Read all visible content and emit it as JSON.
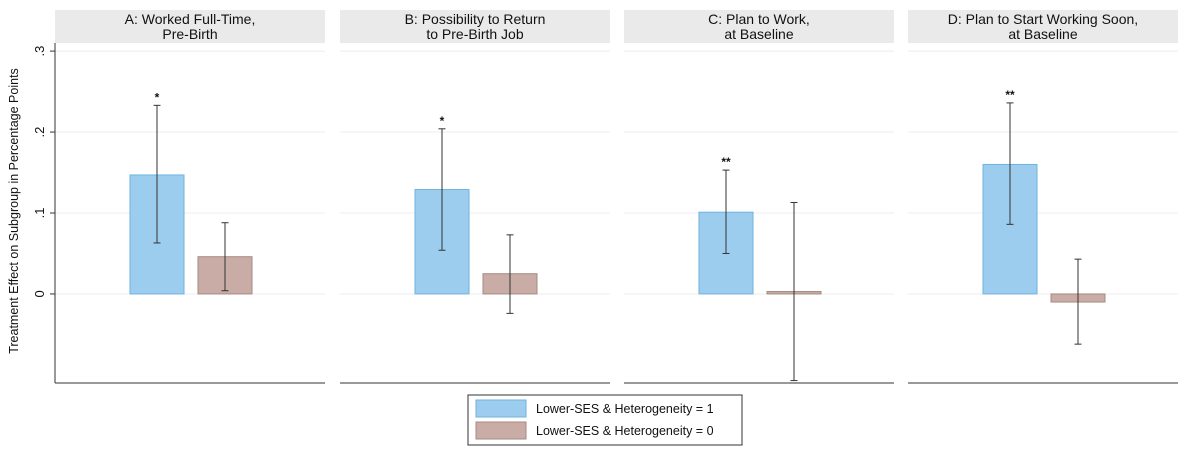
{
  "chart_data": {
    "type": "bar",
    "ylabel": "Treatment Effect on Subgroup in Percentage Points",
    "ylim": [
      -0.11,
      0.31
    ],
    "yticks": [
      0,
      0.1,
      0.2,
      0.3
    ],
    "ytick_labels": [
      "0",
      ".1",
      ".2",
      ".3"
    ],
    "grid": true,
    "legend_position": "bottom-center",
    "series": [
      {
        "name": "Lower-SES & Heterogeneity = 1",
        "color": "#9dcdee",
        "edge": "#6fb3e0"
      },
      {
        "name": "Lower-SES & Heterogeneity = 0",
        "color": "#c9aca6",
        "edge": "#a68a84"
      }
    ],
    "panels": [
      {
        "title_line1": "A: Worked Full-Time,",
        "title_line2": "Pre-Birth",
        "bars": [
          {
            "value": 0.147,
            "ci_low": 0.063,
            "ci_high": 0.233,
            "stars": "*"
          },
          {
            "value": 0.046,
            "ci_low": 0.004,
            "ci_high": 0.088,
            "stars": ""
          }
        ]
      },
      {
        "title_line1": "B: Possibility to Return",
        "title_line2": "to Pre-Birth Job",
        "bars": [
          {
            "value": 0.129,
            "ci_low": 0.054,
            "ci_high": 0.204,
            "stars": "*"
          },
          {
            "value": 0.025,
            "ci_low": -0.024,
            "ci_high": 0.073,
            "stars": ""
          }
        ]
      },
      {
        "title_line1": "C: Plan to Work,",
        "title_line2": "at Baseline",
        "bars": [
          {
            "value": 0.101,
            "ci_low": 0.05,
            "ci_high": 0.153,
            "stars": "**"
          },
          {
            "value": 0.003,
            "ci_low": -0.107,
            "ci_high": 0.113,
            "stars": ""
          }
        ]
      },
      {
        "title_line1": "D: Plan to Start Working Soon,",
        "title_line2": "at Baseline",
        "bars": [
          {
            "value": 0.16,
            "ci_low": 0.086,
            "ci_high": 0.236,
            "stars": "**"
          },
          {
            "value": -0.01,
            "ci_low": -0.062,
            "ci_high": 0.043,
            "stars": ""
          }
        ]
      }
    ]
  }
}
